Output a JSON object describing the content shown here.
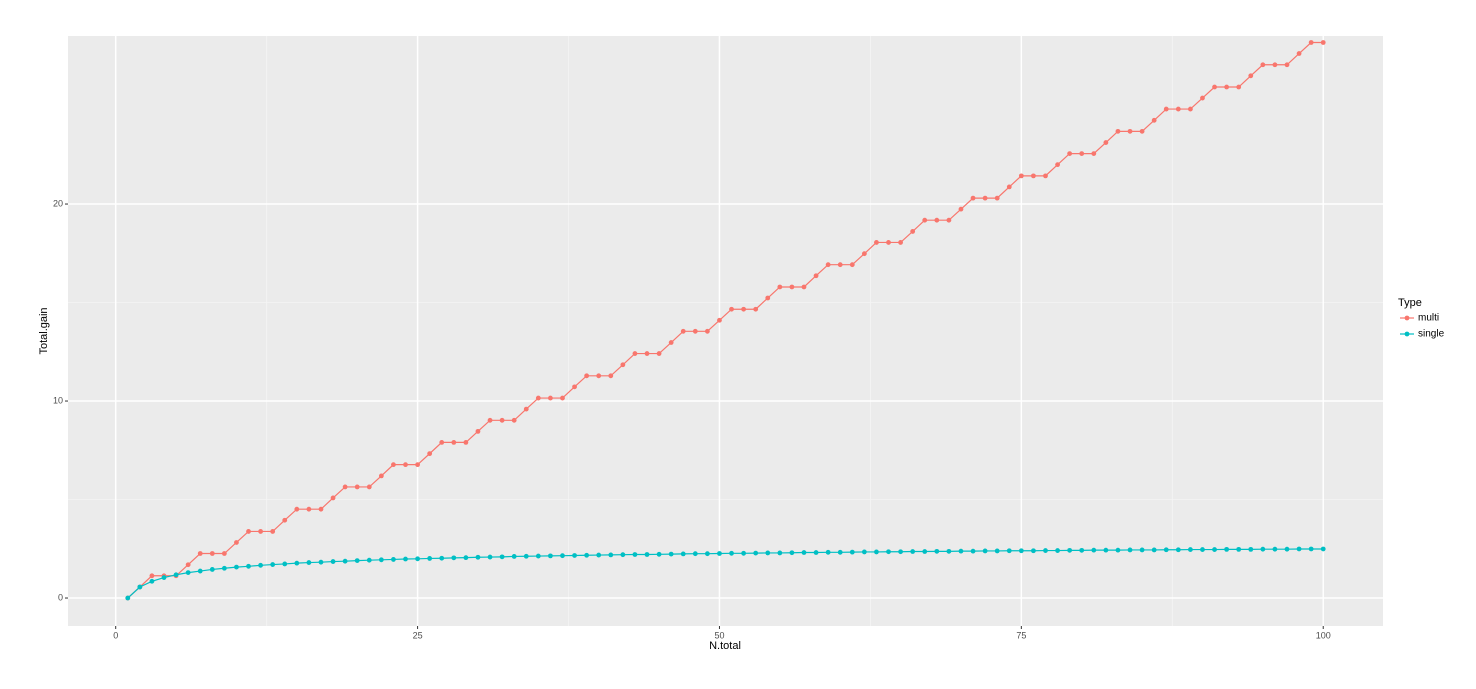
{
  "chart_data": {
    "type": "line",
    "x_label": "N.total",
    "y_label": "Total.gain",
    "legend_title": "Type",
    "legend_position": "right",
    "grid": true,
    "x": [
      1,
      2,
      3,
      4,
      5,
      6,
      7,
      8,
      9,
      10,
      11,
      12,
      13,
      14,
      15,
      16,
      17,
      18,
      19,
      20,
      21,
      22,
      23,
      24,
      25,
      26,
      27,
      28,
      29,
      30,
      31,
      32,
      33,
      34,
      35,
      36,
      37,
      38,
      39,
      40,
      41,
      42,
      43,
      44,
      45,
      46,
      47,
      48,
      49,
      50,
      51,
      52,
      53,
      54,
      55,
      56,
      57,
      58,
      59,
      60,
      61,
      62,
      63,
      64,
      65,
      66,
      67,
      68,
      69,
      70,
      71,
      72,
      73,
      74,
      75,
      76,
      77,
      78,
      79,
      80,
      81,
      82,
      83,
      84,
      85,
      86,
      87,
      88,
      89,
      90,
      91,
      92,
      93,
      94,
      95,
      96,
      97,
      98,
      99,
      100
    ],
    "series": [
      {
        "name": "multi",
        "color": "#F8766D",
        "values": [
          0,
          0.56,
          1.13,
          1.13,
          1.13,
          1.69,
          2.26,
          2.26,
          2.26,
          2.82,
          3.38,
          3.38,
          3.38,
          3.95,
          4.51,
          4.51,
          4.51,
          5.08,
          5.64,
          5.64,
          5.64,
          6.2,
          6.77,
          6.77,
          6.77,
          7.33,
          7.9,
          7.9,
          7.9,
          8.46,
          9.02,
          9.02,
          9.02,
          9.59,
          10.15,
          10.15,
          10.15,
          10.72,
          11.28,
          11.28,
          11.28,
          11.84,
          12.41,
          12.41,
          12.41,
          12.97,
          13.54,
          13.54,
          13.54,
          14.1,
          14.66,
          14.66,
          14.66,
          15.23,
          15.79,
          15.79,
          15.79,
          16.36,
          16.92,
          16.92,
          16.92,
          17.48,
          18.05,
          18.05,
          18.05,
          18.61,
          19.18,
          19.18,
          19.18,
          19.74,
          20.3,
          20.3,
          20.3,
          20.87,
          21.43,
          21.43,
          21.43,
          22.0,
          22.56,
          22.56,
          22.56,
          23.12,
          23.69,
          23.69,
          23.69,
          24.25,
          24.82,
          24.82,
          24.82,
          25.38,
          25.94,
          25.94,
          25.94,
          26.51,
          27.07,
          27.07,
          27.07,
          27.64,
          28.2,
          28.2
        ]
      },
      {
        "name": "single",
        "color": "#00BFC4",
        "values": [
          0,
          0.56,
          0.85,
          1.04,
          1.18,
          1.29,
          1.37,
          1.45,
          1.51,
          1.57,
          1.61,
          1.66,
          1.7,
          1.73,
          1.77,
          1.8,
          1.82,
          1.85,
          1.87,
          1.9,
          1.92,
          1.94,
          1.96,
          1.98,
          1.99,
          2.01,
          2.02,
          2.04,
          2.05,
          2.07,
          2.08,
          2.09,
          2.11,
          2.12,
          2.13,
          2.14,
          2.15,
          2.16,
          2.17,
          2.18,
          2.19,
          2.2,
          2.21,
          2.21,
          2.22,
          2.23,
          2.24,
          2.25,
          2.25,
          2.26,
          2.27,
          2.27,
          2.28,
          2.29,
          2.29,
          2.3,
          2.31,
          2.31,
          2.32,
          2.32,
          2.33,
          2.34,
          2.34,
          2.35,
          2.35,
          2.36,
          2.36,
          2.37,
          2.37,
          2.38,
          2.38,
          2.39,
          2.39,
          2.4,
          2.4,
          2.4,
          2.41,
          2.41,
          2.42,
          2.42,
          2.43,
          2.43,
          2.43,
          2.44,
          2.44,
          2.44,
          2.45,
          2.45,
          2.46,
          2.46,
          2.46,
          2.47,
          2.47,
          2.47,
          2.48,
          2.48,
          2.48,
          2.49,
          2.49,
          2.49
        ]
      }
    ],
    "xlim": [
      -3.95,
      104.95
    ],
    "xticks": [
      0,
      25,
      50,
      75,
      100
    ],
    "ylim": [
      -1.42,
      28.53
    ],
    "yticks": [
      0,
      10,
      20
    ]
  }
}
